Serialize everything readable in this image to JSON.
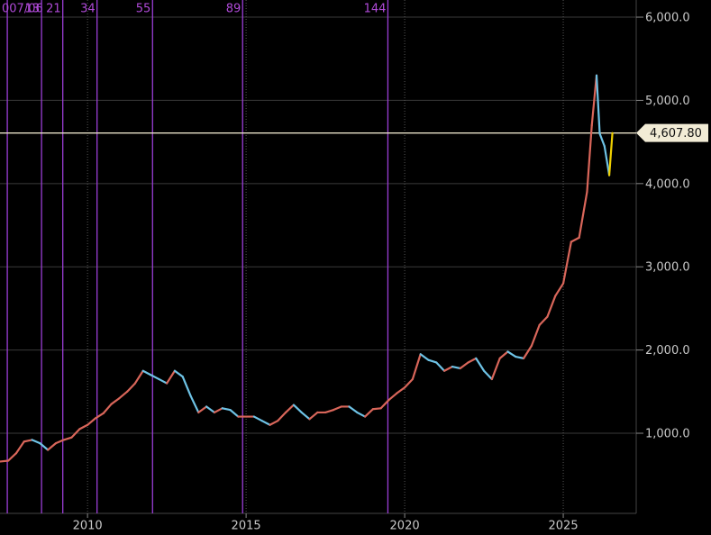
{
  "chart_data": {
    "type": "line",
    "x": [
      2007.25,
      2007.5,
      2007.75,
      2008.0,
      2008.25,
      2008.5,
      2008.75,
      2009.0,
      2009.25,
      2009.5,
      2009.75,
      2010.0,
      2010.25,
      2010.5,
      2010.75,
      2011.0,
      2011.25,
      2011.5,
      2011.75,
      2012.0,
      2012.25,
      2012.5,
      2012.75,
      2013.0,
      2013.25,
      2013.5,
      2013.75,
      2014.0,
      2014.25,
      2014.5,
      2014.75,
      2015.0,
      2015.25,
      2015.5,
      2015.75,
      2016.0,
      2016.25,
      2016.5,
      2016.75,
      2017.0,
      2017.25,
      2017.5,
      2017.75,
      2018.0,
      2018.25,
      2018.5,
      2018.75,
      2019.0,
      2019.25,
      2019.5,
      2019.75,
      2020.0,
      2020.25,
      2020.5,
      2020.75,
      2021.0,
      2021.25,
      2021.5,
      2021.75,
      2022.0,
      2022.25,
      2022.5,
      2022.75,
      2023.0,
      2023.25,
      2023.5,
      2023.75,
      2024.0,
      2024.25,
      2024.5,
      2024.75,
      2025.0,
      2025.25,
      2025.5,
      2025.75,
      2025.9,
      2026.05,
      2026.15,
      2026.3,
      2026.45,
      2026.55
    ],
    "series": [
      {
        "up_color": "#d9665a",
        "down_color": "#6ec3e6",
        "last_color": "#f0d000",
        "values": [
          660,
          670,
          760,
          900,
          920,
          880,
          800,
          880,
          920,
          950,
          1050,
          1100,
          1180,
          1240,
          1350,
          1420,
          1500,
          1600,
          1750,
          1700,
          1650,
          1600,
          1750,
          1680,
          1450,
          1250,
          1320,
          1250,
          1300,
          1280,
          1200,
          1200,
          1200,
          1150,
          1100,
          1150,
          1250,
          1340,
          1250,
          1170,
          1250,
          1250,
          1280,
          1320,
          1320,
          1250,
          1200,
          1290,
          1300,
          1400,
          1480,
          1550,
          1650,
          1950,
          1880,
          1850,
          1750,
          1800,
          1780,
          1850,
          1900,
          1750,
          1650,
          1900,
          1980,
          1920,
          1900,
          2050,
          2300,
          2400,
          2650,
          2800,
          3300,
          3350,
          3900,
          4700,
          5300,
          4600,
          4450,
          4100,
          4607.8
        ]
      }
    ],
    "xlim": [
      2007.24,
      2027.3
    ],
    "xticks": [
      2010,
      2015,
      2020,
      2025
    ],
    "ylim": [
      37,
      6206
    ],
    "yticks": [
      {
        "value": 1000,
        "label": "1,000.0"
      },
      {
        "value": 2000,
        "label": "2,000.0"
      },
      {
        "value": 3000,
        "label": "3,000.0"
      },
      {
        "value": 4000,
        "label": "4,000.0"
      },
      {
        "value": 5000,
        "label": "5,000.0"
      },
      {
        "value": 6000,
        "label": "6,000.0"
      }
    ],
    "grid": true,
    "last_price": {
      "value": 4607.8,
      "label": "4,607.80"
    },
    "fib_lines": {
      "color": "#9b3ed6",
      "x": [
        2007.47,
        2008.55,
        2009.22,
        2010.3,
        2012.05,
        2014.89,
        2019.47
      ],
      "labels": [
        "007/06",
        "13",
        "21",
        "34",
        "55",
        "89",
        "144"
      ]
    }
  }
}
